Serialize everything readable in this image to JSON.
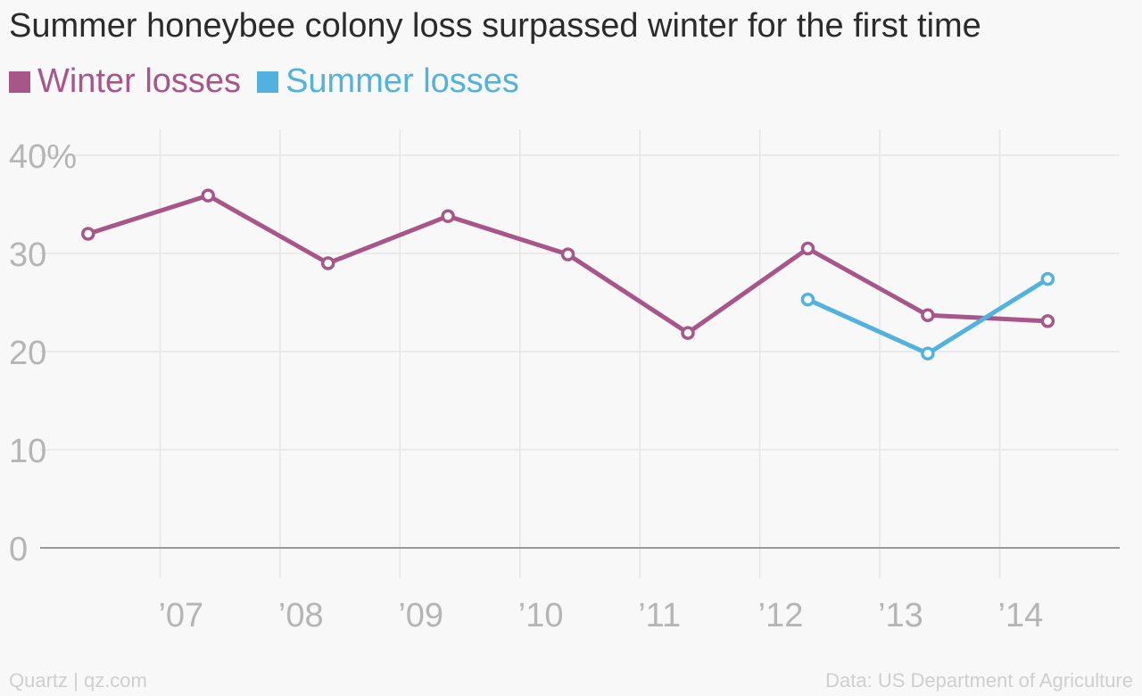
{
  "title": "Summer honeybee colony loss surpassed winter for the first time",
  "footer": {
    "source_left": "Quartz | qz.com",
    "source_right": "Data: US Department of Agriculture"
  },
  "chart_data": {
    "type": "line",
    "title": "Summer honeybee colony loss surpassed winter for the first time",
    "xlabel": "",
    "ylabel": "",
    "ylim": [
      0,
      40
    ],
    "yticks": [
      {
        "value": 0,
        "label": "0"
      },
      {
        "value": 10,
        "label": "10"
      },
      {
        "value": 20,
        "label": "20"
      },
      {
        "value": 30,
        "label": "30"
      },
      {
        "value": 40,
        "label": "40%"
      }
    ],
    "xlim": [
      2006,
      2015
    ],
    "xticks": [
      {
        "value": 2007,
        "label": "’07"
      },
      {
        "value": 2008,
        "label": "’08"
      },
      {
        "value": 2009,
        "label": "’09"
      },
      {
        "value": 2010,
        "label": "’10"
      },
      {
        "value": 2011,
        "label": "’11"
      },
      {
        "value": 2012,
        "label": "’12"
      },
      {
        "value": 2013,
        "label": "’13"
      },
      {
        "value": 2014,
        "label": "’14"
      }
    ],
    "grid": true,
    "legend": "top-left",
    "series": [
      {
        "name": "Winter losses",
        "color": "#a8568a",
        "points": [
          {
            "x": 2006.4,
            "y": 32.0
          },
          {
            "x": 2007.4,
            "y": 35.9
          },
          {
            "x": 2008.4,
            "y": 29.0
          },
          {
            "x": 2009.4,
            "y": 33.8
          },
          {
            "x": 2010.4,
            "y": 29.9
          },
          {
            "x": 2011.4,
            "y": 21.9
          },
          {
            "x": 2012.4,
            "y": 30.5
          },
          {
            "x": 2013.4,
            "y": 23.7
          },
          {
            "x": 2014.4,
            "y": 23.1
          }
        ]
      },
      {
        "name": "Summer losses",
        "color": "#51b2e0",
        "points": [
          {
            "x": 2012.4,
            "y": 25.3
          },
          {
            "x": 2013.4,
            "y": 19.8
          },
          {
            "x": 2014.4,
            "y": 27.4
          }
        ]
      }
    ]
  }
}
